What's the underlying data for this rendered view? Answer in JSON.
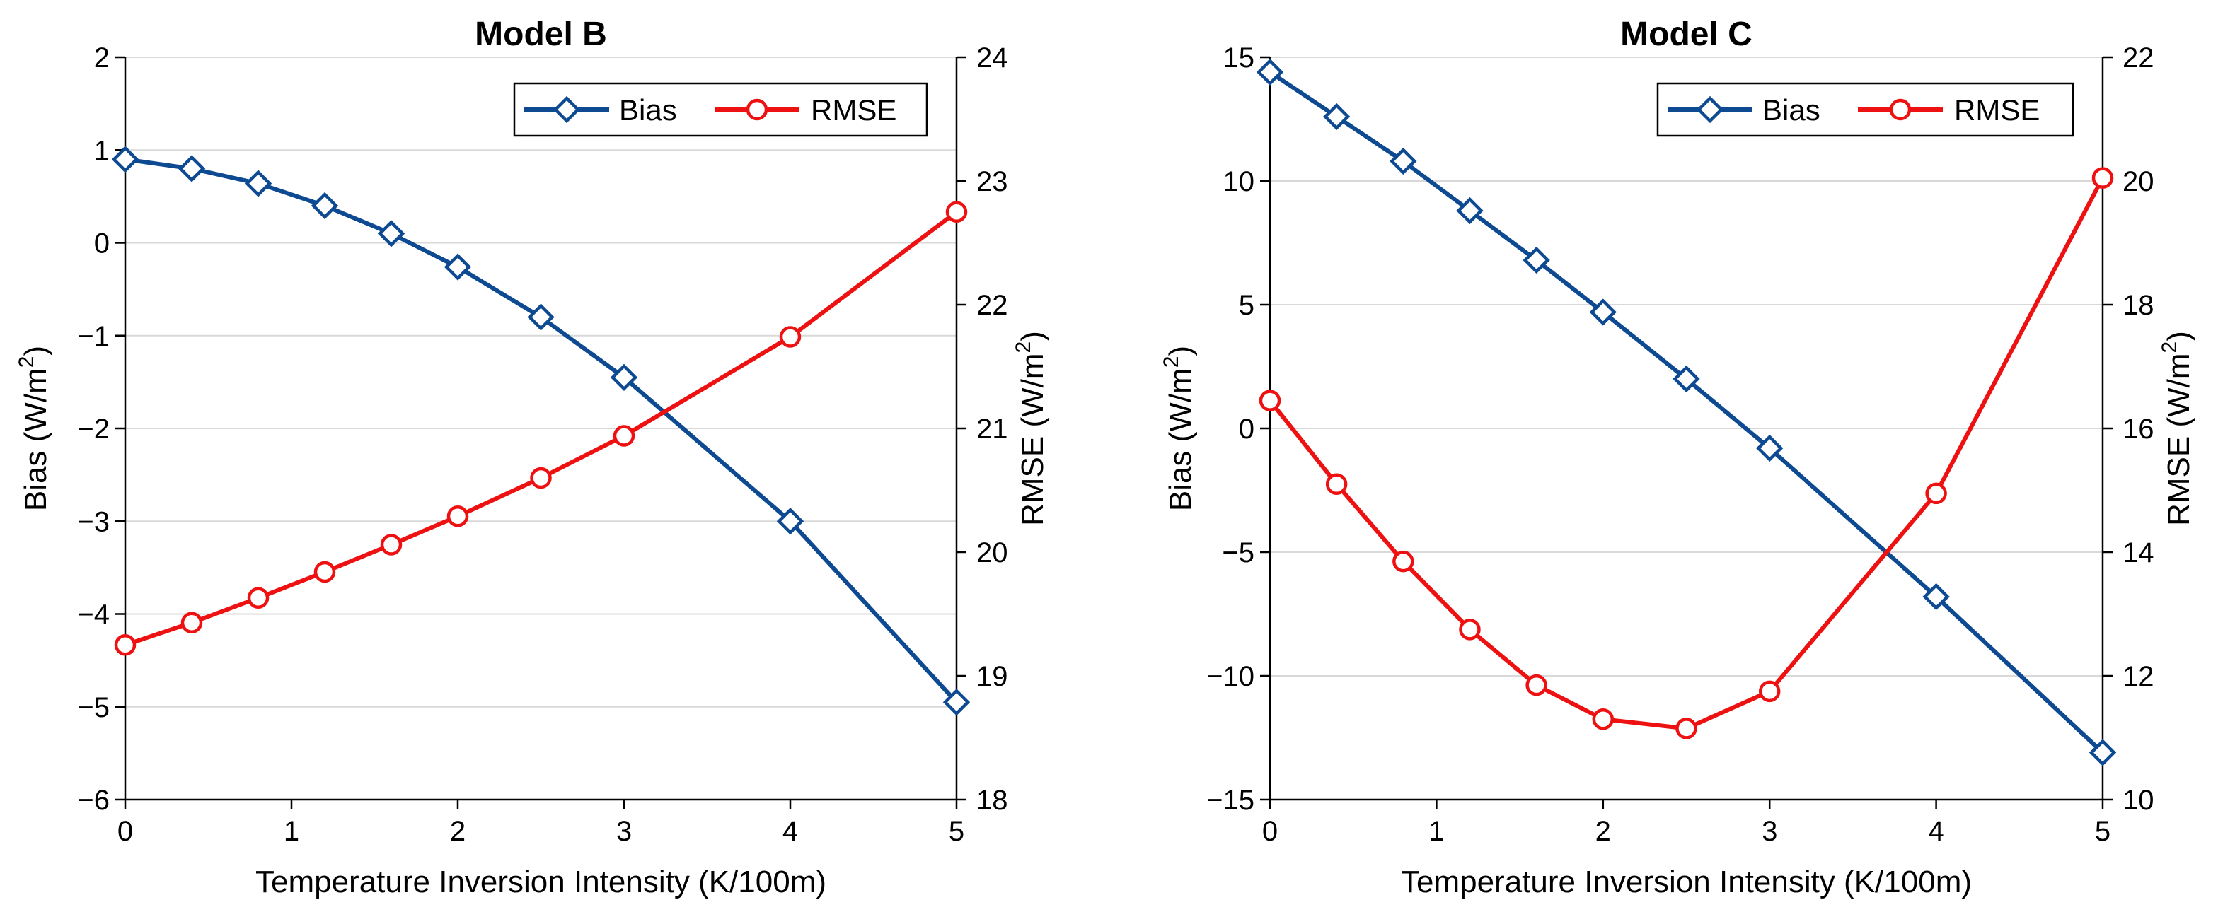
{
  "chart_data": [
    {
      "type": "line",
      "title": "Model B",
      "xlabel": "Temperature Inversion Intensity (K/100m)",
      "ylabel": "Bias (W/m",
      "ylabel_sup": "2",
      "ylabel_end": ")",
      "y2label": "RMSE (W/m",
      "y2label_sup": "2",
      "y2label_end": ")",
      "xlim": [
        0,
        5
      ],
      "ylim": [
        -6,
        2
      ],
      "y2lim": [
        18,
        24
      ],
      "xticks": [
        "0",
        "1",
        "2",
        "3",
        "4",
        "5"
      ],
      "yticks": [
        "2",
        "1",
        "0",
        "−1",
        "−2",
        "−3",
        "−4",
        "−5",
        "−6"
      ],
      "y2ticks": [
        "24",
        "23",
        "22",
        "21",
        "20",
        "19",
        "18"
      ],
      "legend_position": "top-right",
      "series": [
        {
          "name": "Bias",
          "axis": "left",
          "color": "#0d4a92",
          "marker": "diamond",
          "x": [
            0,
            0.4,
            0.8,
            1.2,
            1.6,
            2.0,
            2.5,
            3.0,
            4.0,
            5.0
          ],
          "values": [
            0.9,
            0.8,
            0.64,
            0.4,
            0.1,
            -0.26,
            -0.8,
            -1.45,
            -3.0,
            -4.95
          ]
        },
        {
          "name": "RMSE",
          "axis": "right",
          "color": "#ee1111",
          "marker": "circle",
          "x": [
            0,
            0.4,
            0.8,
            1.2,
            1.6,
            2.0,
            2.5,
            3.0,
            4.0,
            5.0
          ],
          "values": [
            19.25,
            19.43,
            19.63,
            19.84,
            20.06,
            20.29,
            20.6,
            20.94,
            21.74,
            22.75
          ]
        }
      ]
    },
    {
      "type": "line",
      "title": "Model C",
      "xlabel": "Temperature Inversion Intensity (K/100m)",
      "ylabel": "Bias (W/m",
      "ylabel_sup": "2",
      "ylabel_end": ")",
      "y2label": "RMSE (W/m",
      "y2label_sup": "2",
      "y2label_end": ")",
      "xlim": [
        0,
        5
      ],
      "ylim": [
        -15,
        15
      ],
      "y2lim": [
        10,
        22
      ],
      "xticks": [
        "0",
        "1",
        "2",
        "3",
        "4",
        "5"
      ],
      "yticks": [
        "15",
        "10",
        "5",
        "0",
        "−5",
        "−10",
        "−15"
      ],
      "y2ticks": [
        "22",
        "20",
        "18",
        "16",
        "14",
        "12",
        "10"
      ],
      "legend_position": "top-right",
      "series": [
        {
          "name": "Bias",
          "axis": "left",
          "color": "#0d4a92",
          "marker": "diamond",
          "x": [
            0,
            0.4,
            0.8,
            1.2,
            1.6,
            2.0,
            2.5,
            3.0,
            4.0,
            5.0
          ],
          "values": [
            14.4,
            12.6,
            10.8,
            8.8,
            6.8,
            4.7,
            2.0,
            -0.8,
            -6.8,
            -13.1
          ]
        },
        {
          "name": "RMSE",
          "axis": "right",
          "color": "#ee1111",
          "marker": "circle",
          "x": [
            0,
            0.4,
            0.8,
            1.2,
            1.6,
            2.0,
            2.5,
            3.0,
            4.0,
            5.0
          ],
          "values": [
            16.45,
            15.1,
            13.85,
            12.75,
            11.85,
            11.3,
            11.15,
            11.75,
            14.95,
            20.05
          ]
        }
      ]
    }
  ]
}
